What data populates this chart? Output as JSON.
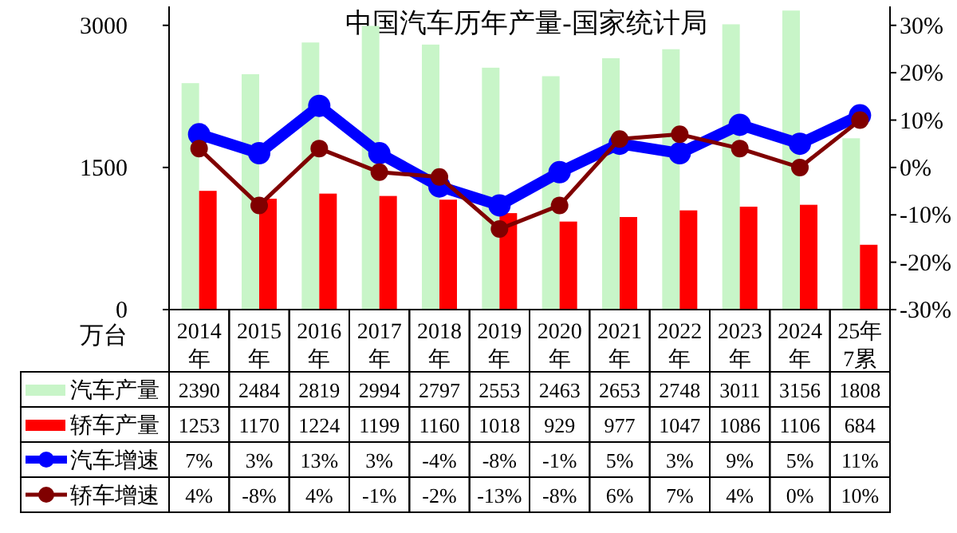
{
  "chart_data": {
    "type": "bar",
    "title": "中国汽车历年产量-国家统计局",
    "ylabel": "万台",
    "categories": [
      "2014\n年",
      "2015\n年",
      "2016\n年",
      "2017\n年",
      "2018\n年",
      "2019\n年",
      "2020\n年",
      "2021\n年",
      "2022\n年",
      "2023\n年",
      "2024\n年",
      "25年\n7累"
    ],
    "series": [
      {
        "name": "汽车产量",
        "color": "#c8f5c8",
        "values": [
          2390,
          2484,
          2819,
          2994,
          2797,
          2553,
          2463,
          2653,
          2748,
          3011,
          3156,
          1808
        ]
      },
      {
        "name": "轿车产量",
        "color": "#ff0000",
        "values": [
          1253,
          1170,
          1224,
          1199,
          1160,
          1018,
          929,
          977,
          1047,
          1086,
          1106,
          684
        ]
      },
      {
        "name": "汽车增速",
        "type": "line",
        "axis": "y2",
        "color": "#0000ff",
        "marker": "circle",
        "values": [
          7,
          3,
          13,
          3,
          -4,
          -8,
          -1,
          5,
          3,
          9,
          5,
          11
        ],
        "value_labels": [
          "7%",
          "3%",
          "13%",
          "3%",
          "-4%",
          "-8%",
          "-1%",
          "5%",
          "3%",
          "9%",
          "5%",
          "11%"
        ]
      },
      {
        "name": "轿车增速",
        "type": "line",
        "axis": "y2",
        "color": "#800000",
        "marker": "circle",
        "values": [
          4,
          -8,
          4,
          -1,
          -2,
          -13,
          -8,
          6,
          7,
          4,
          0,
          10
        ],
        "value_labels": [
          "4%",
          "-8%",
          "4%",
          "-1%",
          "-2%",
          "-13%",
          "-8%",
          "6%",
          "7%",
          "4%",
          "0%",
          "10%"
        ]
      }
    ],
    "data_labels": true,
    "ylim": [
      0,
      3200
    ],
    "yticks": [
      0,
      1500,
      3000
    ],
    "y2lim": [
      -30,
      34
    ],
    "y2ticks": [
      {
        "value": -30,
        "label": "-30%"
      },
      {
        "value": -20,
        "label": "-20%"
      },
      {
        "value": -10,
        "label": "-10%"
      },
      {
        "value": 0,
        "label": "0%"
      },
      {
        "value": 10,
        "label": "10%"
      },
      {
        "value": 20,
        "label": "20%"
      },
      {
        "value": 30,
        "label": "30%"
      }
    ],
    "legend": "bottom",
    "grid": false
  }
}
